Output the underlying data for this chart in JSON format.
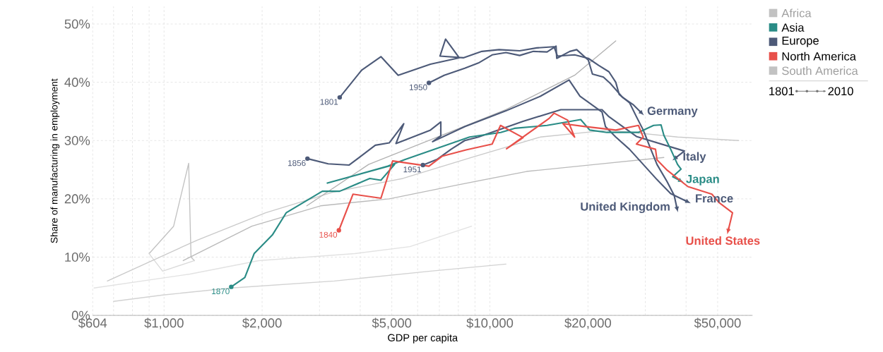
{
  "chart_data": {
    "type": "line",
    "xlabel": "GDP per capita",
    "ylabel": "Share of manufacturing in employment",
    "log": "x",
    "grid": true,
    "xlim": [
      604,
      64000
    ],
    "legend": "right",
    "ylim": [
      0,
      53
    ],
    "xticks": [
      {
        "value": 604,
        "label": "$604"
      },
      {
        "value": 700,
        "label": null
      },
      {
        "value": 800,
        "label": null
      },
      {
        "value": 900,
        "label": null
      },
      {
        "value": 1000,
        "label": "$1,000"
      },
      {
        "value": 2000,
        "label": "$2,000"
      },
      {
        "value": 3000,
        "label": null
      },
      {
        "value": 4000,
        "label": null
      },
      {
        "value": 5000,
        "label": "$5,000"
      },
      {
        "value": 6000,
        "label": null
      },
      {
        "value": 7000,
        "label": null
      },
      {
        "value": 8000,
        "label": null
      },
      {
        "value": 9000,
        "label": null
      },
      {
        "value": 10000,
        "label": "$10,000"
      },
      {
        "value": 20000,
        "label": "$20,000"
      },
      {
        "value": 30000,
        "label": null
      },
      {
        "value": 40000,
        "label": null
      },
      {
        "value": 50000,
        "label": "$50,000"
      }
    ],
    "yticks": [
      {
        "value": 0,
        "label": "0%"
      },
      {
        "value": 10,
        "label": "10%"
      },
      {
        "value": 20,
        "label": "20%"
      },
      {
        "value": 30,
        "label": "30%"
      },
      {
        "value": 40,
        "label": "40%"
      },
      {
        "value": 50,
        "label": "50%"
      }
    ],
    "series": [
      {
        "color": "#c2c2c2",
        "x": [
          900,
          1070,
          1190,
          1210,
          1240
        ],
        "values": [
          10.6,
          15.3,
          26.1,
          10.0,
          9.4
        ]
      },
      {
        "color": "#dadada",
        "x": [
          900,
          990,
          1240
        ],
        "values": [
          10.6,
          7.6,
          9.4
        ]
      },
      {
        "color": "#d2d2d2",
        "x": [
          700,
          990,
          1608,
          3330,
          6570,
          11200
        ],
        "values": [
          2.4,
          3.5,
          4.7,
          5.9,
          7.6,
          8.8
        ]
      },
      {
        "color": "#cacaca",
        "x": [
          670,
          1262,
          2050,
          3330,
          5410,
          8790,
          14280,
          23190,
          37670,
          58000
        ],
        "values": [
          5.9,
          12.9,
          17.6,
          21.2,
          23.5,
          27.1,
          30.6,
          31.8,
          30.6,
          30.0
        ]
      },
      {
        "color": "#bababa",
        "x": [
          1145,
          1860,
          3020,
          4910,
          7975,
          12960,
          21050,
          34190
        ],
        "values": [
          9.4,
          15.3,
          18.8,
          20.0,
          22.4,
          24.7,
          25.9,
          27.1
        ]
      },
      {
        "color": "#b2b2b2",
        "x": [
          2742,
          4244,
          6895,
          11200,
          18200,
          24340
        ],
        "values": [
          18.8,
          25.9,
          30.6,
          35.3,
          41.2,
          47.1
        ]
      },
      {
        "color": "#e2e2e2",
        "x": [
          610,
          1202,
          1953,
          3850,
          5680,
          8790
        ],
        "values": [
          4.7,
          7.1,
          9.4,
          10.6,
          11.8,
          15.3
        ]
      },
      {
        "name": "United Kingdom",
        "color": "#4d5a78",
        "x": [
          3460,
          4043,
          4630,
          5230,
          6570,
          8050,
          7310,
          7030,
          8290,
          9450,
          10670,
          12340,
          13930,
          15730,
          16120,
          18200,
          20050,
          21560,
          23190,
          24340,
          24940,
          26820,
          28160,
          29560,
          31030,
          32570,
          35030,
          36780,
          37480
        ],
        "values": [
          37.4,
          42.1,
          44.4,
          41.2,
          43.1,
          44.2,
          47.4,
          44.5,
          44.2,
          45.3,
          45.6,
          45.4,
          45.9,
          46.1,
          44.5,
          44.7,
          44.1,
          42.9,
          41.8,
          40.0,
          37.9,
          36.5,
          34.1,
          31.8,
          28.8,
          25.9,
          22.9,
          20.6,
          18.5
        ]
      },
      {
        "name": "Germany",
        "color": "#4d5a78",
        "x": [
          6500,
          7240,
          8370,
          9220,
          10160,
          11200,
          12340,
          13600,
          14980,
          15960,
          16040,
          17590,
          18470,
          20050,
          20640,
          22300,
          23420,
          25550,
          27480,
          29000
        ],
        "values": [
          39.9,
          41.2,
          42.4,
          43.3,
          44.7,
          45.1,
          44.6,
          45.3,
          45.2,
          46.2,
          44.1,
          45.3,
          45.6,
          43.8,
          41.4,
          40.9,
          39.8,
          37.4,
          36.2,
          34.9
        ]
      },
      {
        "name": "France",
        "color": "#4d5a78",
        "x": [
          2755,
          3190,
          3700,
          4450,
          4910,
          5440,
          5150,
          6570,
          7070,
          7070,
          6670,
          8370,
          11200,
          14280,
          17500,
          18900,
          22090,
          22630,
          24340,
          26820,
          29560,
          32570,
          35890,
          40110
        ],
        "values": [
          26.9,
          26.0,
          25.8,
          29.2,
          29.6,
          32.9,
          29.5,
          31.8,
          33.2,
          30.8,
          29.8,
          32.4,
          35.1,
          37.6,
          40.4,
          37.6,
          34.9,
          32.4,
          30.6,
          28.5,
          25.9,
          23.3,
          20.9,
          19.6
        ]
      },
      {
        "name": "Italy",
        "color": "#4d5a78",
        "x": [
          6230,
          6900,
          7600,
          8370,
          9220,
          12640,
          16510,
          22090,
          23190,
          25550,
          28160,
          39540,
          37300
        ],
        "values": [
          25.8,
          26.8,
          28.5,
          30.0,
          30.6,
          33.3,
          35.3,
          35.3,
          34.1,
          32.4,
          30.7,
          28.2,
          27.1
        ]
      },
      {
        "name": "Japan",
        "color": "#2a8c86",
        "x": [
          1608,
          1770,
          1890,
          2150,
          2370,
          3060,
          3460,
          4280,
          4630,
          5100,
          3170,
          4860,
          5460,
          8660,
          10800,
          11900,
          14980,
          19000,
          20250,
          22860,
          28570,
          31800,
          33520,
          34190,
          35890,
          37670,
          38600,
          36400,
          38150
        ],
        "values": [
          4.9,
          6.5,
          10.6,
          13.8,
          17.6,
          21.3,
          21.3,
          23.5,
          23.2,
          25.9,
          22.7,
          25.6,
          26.7,
          30.6,
          31.4,
          32.1,
          32.6,
          33.6,
          31.8,
          31.4,
          31.4,
          32.6,
          32.7,
          30.9,
          28.5,
          25.9,
          25.1,
          23.8,
          23.2
        ]
      },
      {
        "name": "United States",
        "color": "#e8504a",
        "x": [
          3440,
          3800,
          4630,
          5030,
          6500,
          7130,
          8450,
          10160,
          10780,
          12640,
          11250,
          15200,
          15730,
          17330,
          18200,
          16760,
          19570,
          24340,
          28570,
          29560,
          28160,
          32230,
          32570,
          35030,
          37670,
          40520,
          48010,
          50400,
          55530,
          53940
        ],
        "values": [
          14.6,
          20.8,
          20.1,
          26.5,
          25.6,
          27.3,
          28.4,
          29.4,
          32.6,
          30.5,
          28.6,
          33.8,
          34.7,
          33.5,
          30.6,
          32.9,
          32.4,
          31.8,
          32.6,
          30.6,
          29.4,
          28.5,
          26.7,
          24.9,
          23.5,
          22.1,
          20.8,
          19.4,
          17.6,
          14.7
        ]
      }
    ],
    "annotations": [
      "Africa",
      "Asia",
      "Europe",
      "North America",
      "South America",
      "1801",
      "2010",
      {
        "text": "1801",
        "x": 3460,
        "y": 37.4
      },
      {
        "text": "1950",
        "x": 6500,
        "y": 39.9
      },
      {
        "text": "1856",
        "x": 2755,
        "y": 26.9
      },
      {
        "text": "1951",
        "x": 6230,
        "y": 25.8
      },
      {
        "text": "1870",
        "x": 1608,
        "y": 4.9
      },
      {
        "text": "1840",
        "x": 3440,
        "y": 14.6
      }
    ]
  }
}
